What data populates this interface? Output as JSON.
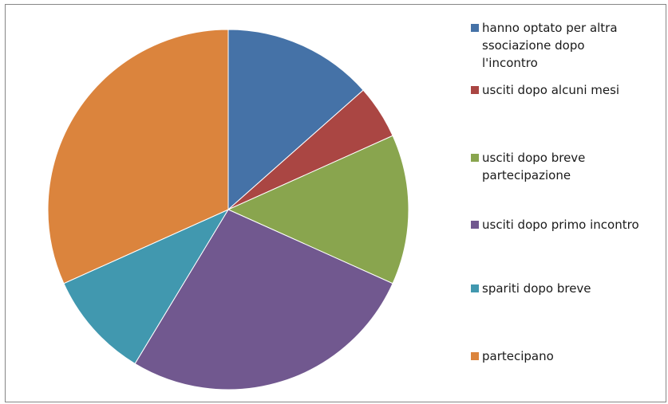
{
  "chart_data": {
    "type": "pie",
    "title": "",
    "legend_position": "right",
    "slices": [
      {
        "label": "hanno optato per altra\nssociazione dopo\nl'incontro",
        "value": 14,
        "color": "#4572A7"
      },
      {
        "label": "usciti dopo alcuni mesi",
        "value": 5,
        "color": "#AA4643"
      },
      {
        "label": "usciti dopo breve\npartecipazione",
        "value": 14,
        "color": "#89A54E"
      },
      {
        "label": "usciti dopo primo incontro",
        "value": 28,
        "color": "#71588F"
      },
      {
        "label": "spariti dopo breve",
        "value": 10,
        "color": "#4198AF"
      },
      {
        "label": "partecipano",
        "value": 33,
        "color": "#DB843D"
      }
    ]
  }
}
